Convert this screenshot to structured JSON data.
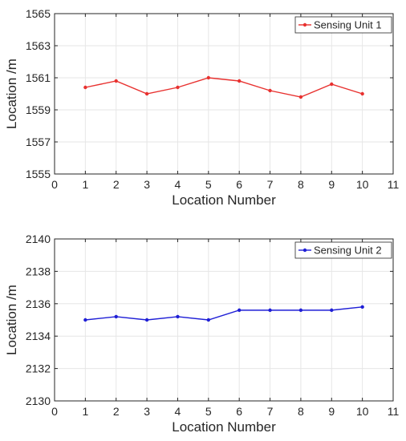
{
  "chart_data": [
    {
      "type": "line",
      "xlabel": "Location Number",
      "ylabel": "Location /m",
      "xlim": [
        0,
        11
      ],
      "ylim": [
        1555,
        1565
      ],
      "xticks": [
        "0",
        "1",
        "2",
        "3",
        "4",
        "5",
        "6",
        "7",
        "8",
        "9",
        "10",
        "11"
      ],
      "yticks": [
        "1555",
        "1557",
        "1559",
        "1561",
        "1563",
        "1565"
      ],
      "grid": true,
      "legend_position": "top-right",
      "series": [
        {
          "name": "Sensing Unit 1",
          "color": "#e8312f",
          "x": [
            1,
            2,
            3,
            4,
            5,
            6,
            7,
            8,
            9,
            10
          ],
          "values": [
            1560.4,
            1560.8,
            1560.0,
            1560.4,
            1561.0,
            1560.8,
            1560.2,
            1559.8,
            1560.6,
            1560.0
          ]
        }
      ]
    },
    {
      "type": "line",
      "xlabel": "Location Number",
      "ylabel": "Location /m",
      "xlim": [
        0,
        11
      ],
      "ylim": [
        2130,
        2140
      ],
      "xticks": [
        "0",
        "1",
        "2",
        "3",
        "4",
        "5",
        "6",
        "7",
        "8",
        "9",
        "10",
        "11"
      ],
      "yticks": [
        "2130",
        "2132",
        "2134",
        "2136",
        "2138",
        "2140"
      ],
      "grid": true,
      "legend_position": "top-right",
      "series": [
        {
          "name": "Sensing Unit 2",
          "color": "#1f1fd6",
          "x": [
            1,
            2,
            3,
            4,
            5,
            6,
            7,
            8,
            9,
            10
          ],
          "values": [
            2135.0,
            2135.2,
            2135.0,
            2135.2,
            2135.0,
            2135.6,
            2135.6,
            2135.6,
            2135.6,
            2135.8
          ]
        }
      ]
    }
  ]
}
